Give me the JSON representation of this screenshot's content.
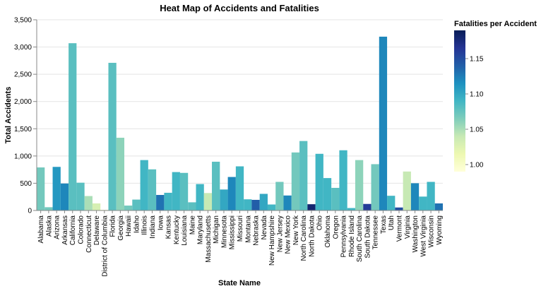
{
  "chart_data": {
    "type": "bar",
    "title": "Heat Map of Accidents and Fatalities",
    "xlabel": "State Name",
    "ylabel": "Total Accidents",
    "ylim": [
      0,
      3500
    ],
    "yticks": [
      0,
      500,
      1000,
      1500,
      2000,
      2500,
      3000,
      3500
    ],
    "ytick_labels": [
      "0",
      "500",
      "1,000",
      "1,500",
      "2,000",
      "2,500",
      "3,000",
      "3,500"
    ],
    "grid": true,
    "legend": {
      "title": "Fatalities per Accident",
      "position": "right",
      "range": [
        0.99,
        1.19
      ],
      "ticks": [
        1.0,
        1.05,
        1.1,
        1.15
      ],
      "tick_labels": [
        "1.00",
        "1.05",
        "1.10",
        "1.15"
      ],
      "colors": [
        "#ffffd9",
        "#edf8b1",
        "#c7e9b4",
        "#7fcdbb",
        "#41b6c4",
        "#1d91c0",
        "#225ea8",
        "#253494",
        "#081d58"
      ]
    },
    "categories": [
      "Alabama",
      "Alaska",
      "Arizona",
      "Arkansas",
      "California",
      "Colorado",
      "Connecticut",
      "Delaware",
      "District of Columbia",
      "Florida",
      "Georgia",
      "Hawaii",
      "Idaho",
      "Illinois",
      "Indiana",
      "Iowa",
      "Kansas",
      "Kentucky",
      "Louisiana",
      "Maine",
      "Maryland",
      "Massachusetts",
      "Michigan",
      "Minnesota",
      "Mississippi",
      "Missouri",
      "Montana",
      "Nebraska",
      "Nevada",
      "New Hampshire",
      "New Jersey",
      "New Mexico",
      "New York",
      "North Carolina",
      "North Dakota",
      "Ohio",
      "Oklahoma",
      "Oregon",
      "Pennsylvania",
      "Rhode Island",
      "South Carolina",
      "South Dakota",
      "Tennessee",
      "Texas",
      "Utah",
      "Vermont",
      "Virginia",
      "Washington",
      "West Virginia",
      "Wisconsin",
      "Wyoming"
    ],
    "series": [
      {
        "values": [
          790,
          60,
          800,
          495,
          3070,
          510,
          265,
          130,
          10,
          2710,
          1335,
          90,
          200,
          925,
          755,
          285,
          325,
          705,
          690,
          150,
          485,
          320,
          895,
          385,
          615,
          810,
          205,
          195,
          305,
          110,
          525,
          275,
          1065,
          1275,
          115,
          1040,
          595,
          415,
          1105,
          45,
          925,
          120,
          850,
          3190,
          270,
          55,
          715,
          500,
          255,
          525,
          130
        ]
      },
      {
        "values": [
          1.07,
          1.07,
          1.11,
          1.12,
          1.08,
          1.08,
          1.05,
          1.03,
          1.02,
          1.08,
          1.06,
          1.07,
          1.08,
          1.09,
          1.08,
          1.13,
          1.09,
          1.09,
          1.08,
          1.08,
          1.09,
          1.04,
          1.08,
          1.1,
          1.12,
          1.09,
          1.09,
          1.14,
          1.1,
          1.09,
          1.07,
          1.12,
          1.07,
          1.08,
          1.18,
          1.09,
          1.09,
          1.08,
          1.09,
          1.09,
          1.06,
          1.16,
          1.07,
          1.12,
          1.09,
          1.15,
          1.04,
          1.12,
          1.09,
          1.09,
          1.13
        ]
      }
    ]
  }
}
